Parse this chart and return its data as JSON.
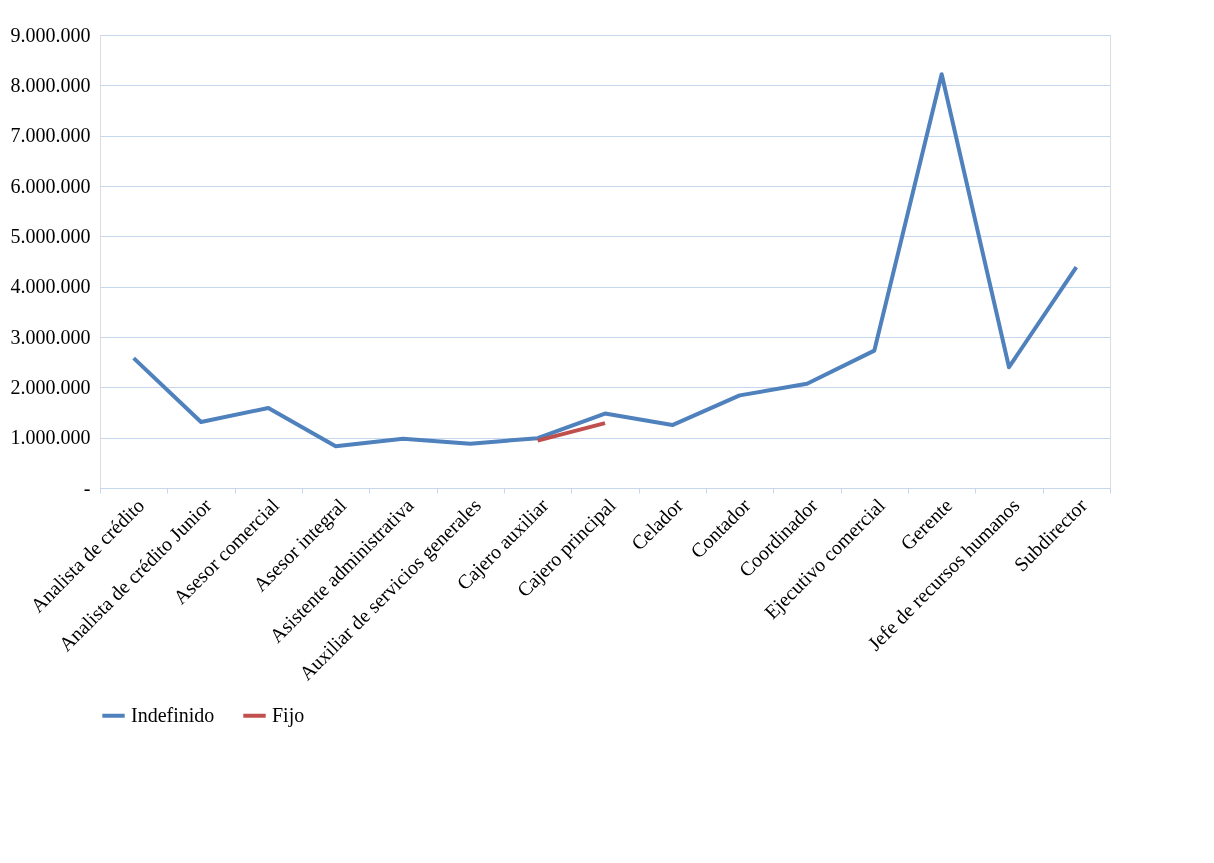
{
  "chart_data": {
    "type": "line",
    "categories": [
      "Analista de crédito",
      "Analista de crédito Junior",
      "Asesor comercial",
      "Asesor integral",
      "Asistente administrativa",
      "Auxiliar de servicios generales",
      "Cajero auxiliar",
      "Cajero principal",
      "Celador",
      "Contador",
      "Coordinador",
      "Ejecutivo comercial",
      "Gerente",
      "Jefe de recursos humanos",
      "Subdirector"
    ],
    "series": [
      {
        "name": "Indefinido",
        "color": "#4f81bd",
        "values": [
          2580000,
          1310000,
          1590000,
          830000,
          980000,
          880000,
          990000,
          1480000,
          1250000,
          1840000,
          2070000,
          2730000,
          8220000,
          2400000,
          4390000
        ]
      },
      {
        "name": "Fijo",
        "color": "#c0504d",
        "values": [
          null,
          null,
          null,
          null,
          null,
          null,
          940000,
          1290000,
          null,
          null,
          null,
          null,
          null,
          null,
          null
        ]
      }
    ],
    "ylim": [
      0,
      9000000
    ],
    "yticks": [
      {
        "value": 0,
        "label": "-"
      },
      {
        "value": 1000000,
        "label": "1.000.000"
      },
      {
        "value": 2000000,
        "label": "2.000.000"
      },
      {
        "value": 3000000,
        "label": "3.000.000"
      },
      {
        "value": 4000000,
        "label": "4.000.000"
      },
      {
        "value": 5000000,
        "label": "5.000.000"
      },
      {
        "value": 6000000,
        "label": "6.000.000"
      },
      {
        "value": 7000000,
        "label": "7.000.000"
      },
      {
        "value": 8000000,
        "label": "8.000.000"
      },
      {
        "value": 9000000,
        "label": "9.000.000"
      }
    ],
    "grid": "y",
    "legend": "bottom",
    "marker": "none",
    "line_style": "solid"
  }
}
